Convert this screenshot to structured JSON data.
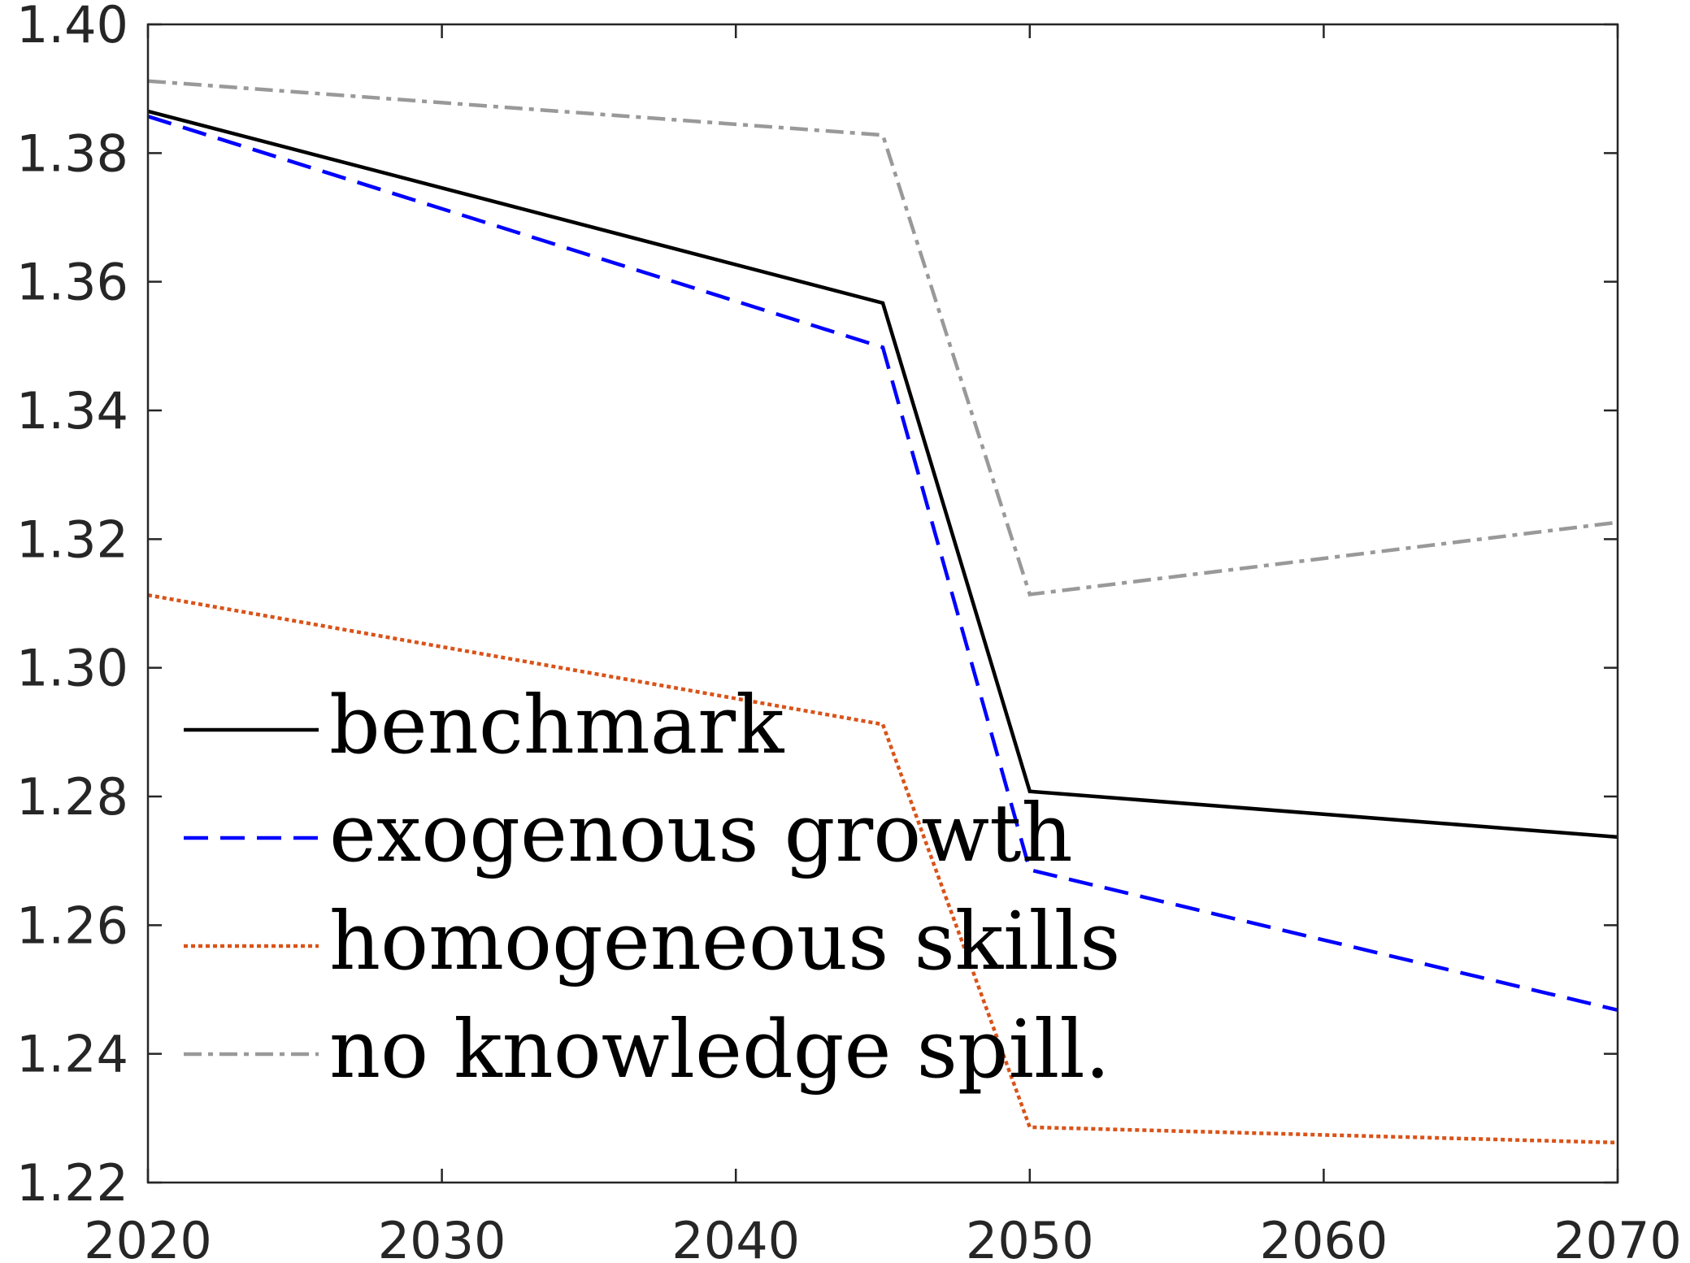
{
  "chart_data": {
    "type": "line",
    "title": "",
    "xlabel": "",
    "ylabel": "",
    "xlim": [
      2020,
      2070
    ],
    "ylim": [
      1.22,
      1.4
    ],
    "x_ticks": [
      2020,
      2030,
      2040,
      2050,
      2060,
      2070
    ],
    "y_ticks": [
      1.22,
      1.24,
      1.26,
      1.28,
      1.3,
      1.32,
      1.34,
      1.36,
      1.38,
      1.4
    ],
    "x_tick_labels": [
      "2020",
      "2030",
      "2040",
      "2050",
      "2060",
      "2070"
    ],
    "y_tick_labels": [
      "1.22",
      "1.24",
      "1.26",
      "1.28",
      "1.30",
      "1.32",
      "1.34",
      "1.36",
      "1.38",
      "1.40"
    ],
    "grid": false,
    "legend_position": "bottom-left",
    "x": [
      2020,
      2045,
      2050,
      2070
    ],
    "series": [
      {
        "name": "benchmark",
        "values": [
          1.3865,
          1.3567,
          1.2808,
          1.2737
        ],
        "color": "#000000",
        "style": "solid"
      },
      {
        "name": "exogenous growth",
        "values": [
          1.3857,
          1.3498,
          1.2686,
          1.2468
        ],
        "color": "#0000ff",
        "style": "dashed"
      },
      {
        "name": "homogeneous skills",
        "values": [
          1.3113,
          1.2912,
          1.2286,
          1.2262
        ],
        "color": "#d95319",
        "style": "dotted"
      },
      {
        "name": "no knowledge spill.",
        "values": [
          1.3912,
          1.3828,
          1.3114,
          1.3226
        ],
        "color": "#999999",
        "style": "dashdot"
      }
    ]
  }
}
